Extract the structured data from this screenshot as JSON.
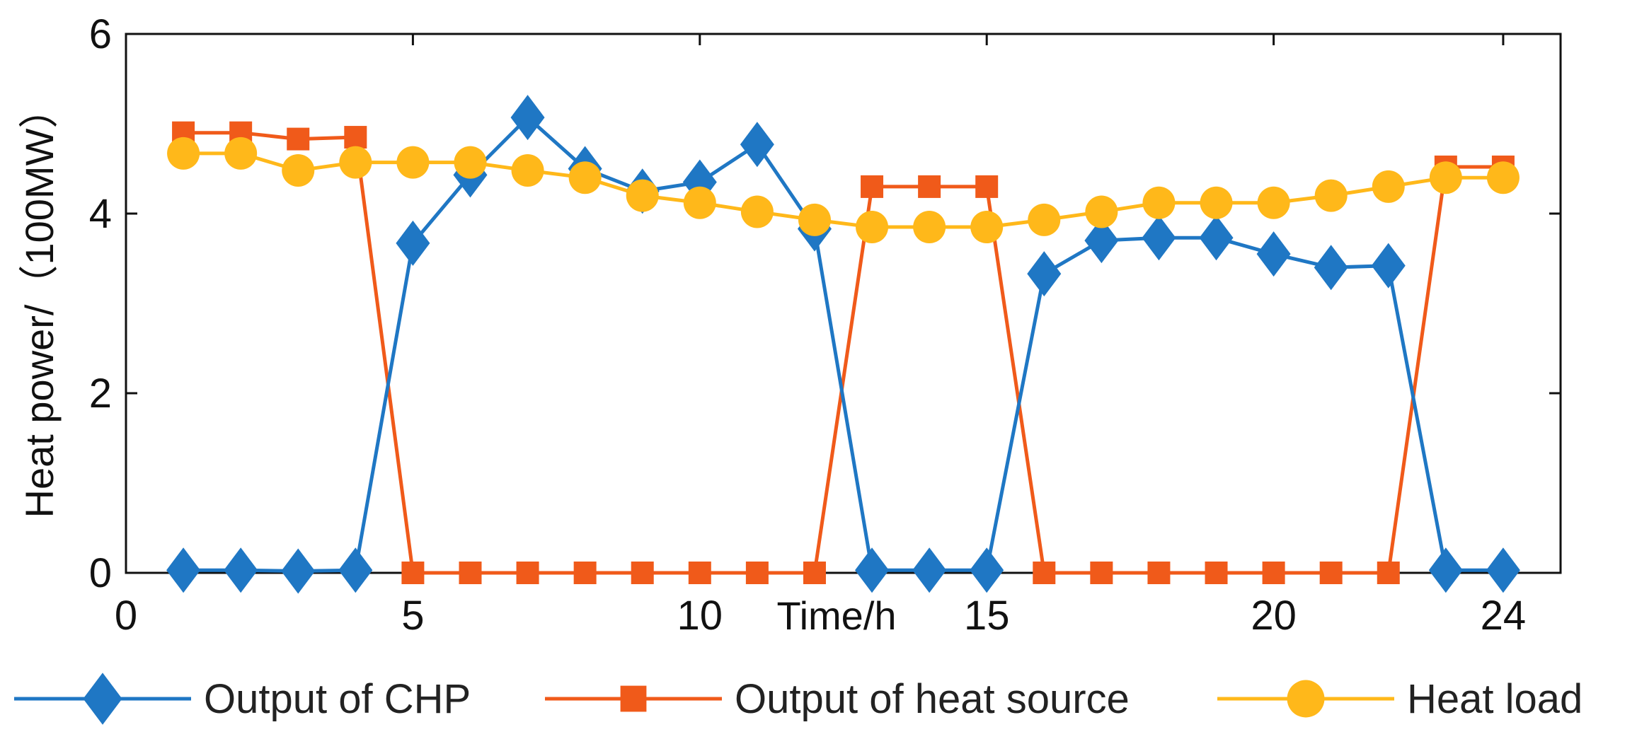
{
  "chart_data": {
    "type": "line",
    "xlabel": "Time/h",
    "ylabel": "Heat power/（100MW）",
    "xlim": [
      0,
      25
    ],
    "ylim": [
      0,
      6
    ],
    "x_ticks": [
      0,
      5,
      10,
      15,
      20,
      24
    ],
    "y_ticks": [
      0,
      2,
      4,
      6
    ],
    "grid": false,
    "legend_position": "bottom",
    "x": [
      1,
      2,
      3,
      4,
      5,
      6,
      7,
      8,
      9,
      10,
      11,
      12,
      13,
      14,
      15,
      16,
      17,
      18,
      19,
      20,
      21,
      22,
      23,
      24
    ],
    "series": [
      {
        "name": "Output of CHP",
        "marker": "diamond",
        "color": "#1f77c4",
        "values": [
          0.03,
          0.03,
          0.02,
          0.03,
          3.67,
          4.43,
          5.07,
          4.5,
          4.25,
          4.35,
          4.77,
          3.83,
          0.03,
          0.03,
          0.03,
          3.33,
          3.7,
          3.73,
          3.73,
          3.55,
          3.4,
          3.42,
          0.03,
          0.03
        ]
      },
      {
        "name": "Output of heat source",
        "marker": "square",
        "color": "#f05a1a",
        "values": [
          4.9,
          4.9,
          4.83,
          4.85,
          0,
          0,
          0,
          0,
          0,
          0,
          0,
          0,
          4.3,
          4.3,
          4.3,
          0,
          0,
          0,
          0,
          0,
          0,
          0,
          4.52,
          4.52
        ]
      },
      {
        "name": "Heat load",
        "marker": "circle",
        "color": "#ffb81a",
        "values": [
          4.67,
          4.67,
          4.48,
          4.57,
          4.57,
          4.57,
          4.48,
          4.4,
          4.2,
          4.12,
          4.02,
          3.93,
          3.85,
          3.85,
          3.85,
          3.93,
          4.02,
          4.12,
          4.12,
          4.12,
          4.2,
          4.3,
          4.4,
          4.4
        ]
      }
    ]
  }
}
